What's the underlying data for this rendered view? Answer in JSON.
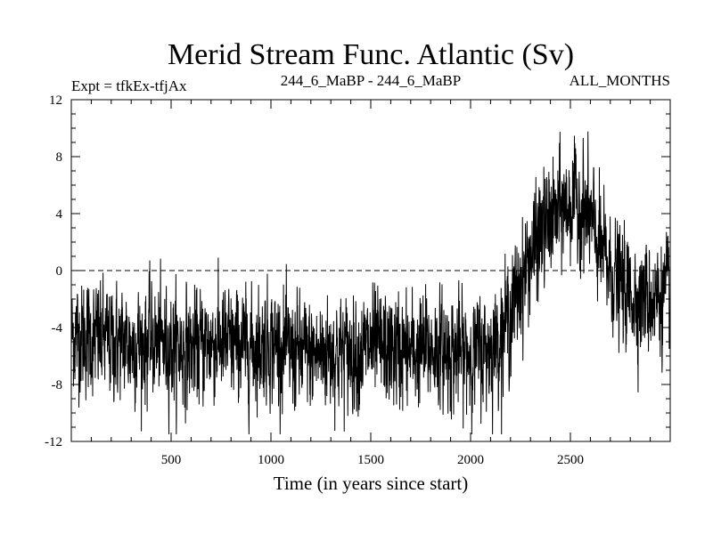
{
  "chart_data": {
    "type": "line",
    "title": "Merid Stream Func. Atlantic (Sv)",
    "experiment_label": "Expt = tfkEx-tfjAx",
    "period_label": "244_6_MaBP - 244_6_MaBP",
    "months_label": "ALL_MONTHS",
    "xlabel": "Time (in years since start)",
    "ylabel": "",
    "xlim": [
      0,
      3000
    ],
    "ylim": [
      -12,
      12
    ],
    "x_ticks": [
      500,
      1000,
      1500,
      2000,
      2500
    ],
    "x_tick_labels": [
      "500",
      "1000",
      "1500",
      "2000",
      "2500"
    ],
    "y_ticks": [
      -12,
      -8,
      -4,
      0,
      4,
      8,
      12
    ],
    "y_tick_labels": [
      "-12",
      "-8",
      "-4",
      "0",
      "4",
      "8",
      "12"
    ],
    "zero_line": true,
    "grid": false,
    "series": [
      {
        "color": "#000000",
        "x": [
          0,
          100,
          200,
          300,
          400,
          500,
          600,
          700,
          800,
          900,
          1000,
          1100,
          1200,
          1300,
          1400,
          1500,
          1600,
          1700,
          1800,
          1900,
          2000,
          2100,
          2150,
          2200,
          2250,
          2300,
          2350,
          2400,
          2450,
          2500,
          2550,
          2600,
          2650,
          2700,
          2750,
          2800,
          2850,
          2900,
          2950,
          3000
        ],
        "y": [
          -4.5,
          -4.8,
          -5.0,
          -5.2,
          -5.0,
          -5.3,
          -5.5,
          -5.0,
          -5.2,
          -5.4,
          -5.0,
          -5.8,
          -6.0,
          -5.6,
          -5.8,
          -5.4,
          -5.6,
          -5.8,
          -5.5,
          -5.7,
          -5.9,
          -5.5,
          -4.5,
          -3.0,
          -1.0,
          1.0,
          2.5,
          3.5,
          4.2,
          4.8,
          4.5,
          3.5,
          1.5,
          0.0,
          -1.0,
          -1.6,
          -1.9,
          -2.0,
          -1.8,
          -1.7
        ],
        "noise_amplitude": 2.2
      }
    ]
  }
}
